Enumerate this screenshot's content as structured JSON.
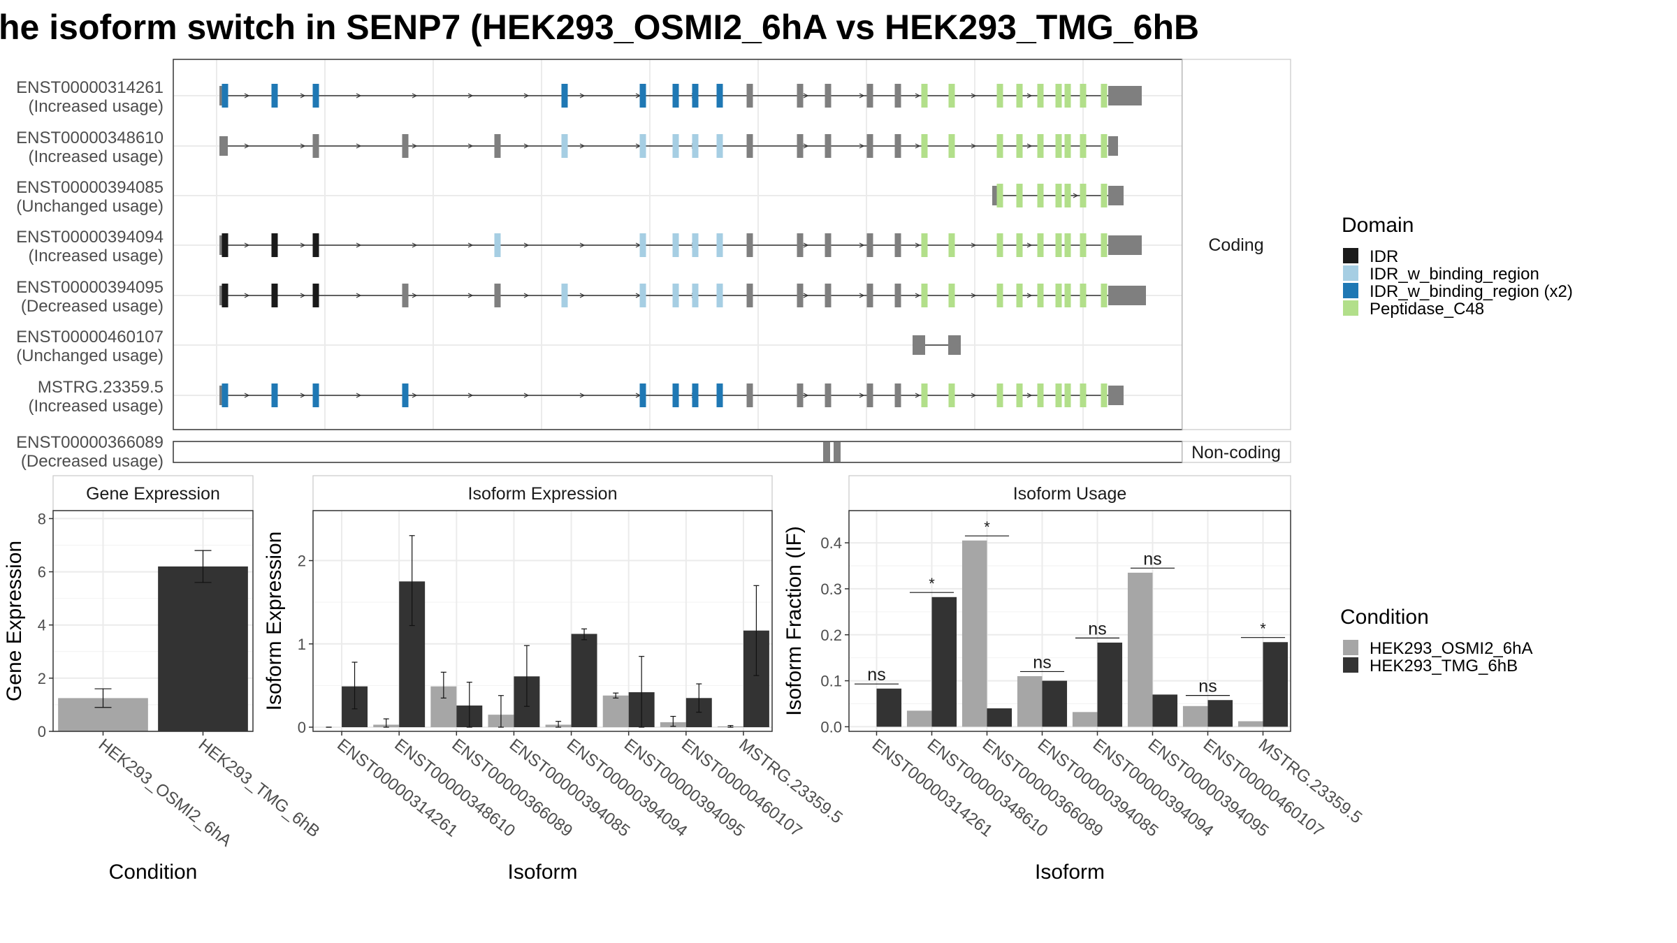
{
  "title": "he isoform switch in SENP7 (HEK293_OSMI2_6hA vs HEK293_TMG_6hB",
  "colors": {
    "IDR": "#1a1a1a",
    "IDR_w_binding_region": "#a6cee3",
    "IDR_w_binding_region (x2)": "#1f78b4",
    "Peptidase_C48": "#b2df8a",
    "exon": "#7f7f7f",
    "cond1": "#a6a6a6",
    "cond2": "#333333",
    "grid": "#ebebeb"
  },
  "structure": {
    "coding_label": "Coding",
    "noncoding_label": "Non-coding",
    "coding": [
      {
        "id": "ENST00000314261",
        "usage": "(Increased usage)"
      },
      {
        "id": "ENST00000348610",
        "usage": "(Increased usage)"
      },
      {
        "id": "ENST00000394085",
        "usage": "(Unchanged usage)"
      },
      {
        "id": "ENST00000394094",
        "usage": "(Increased usage)"
      },
      {
        "id": "ENST00000394095",
        "usage": "(Decreased usage)"
      },
      {
        "id": "ENST00000460107",
        "usage": "(Unchanged usage)"
      },
      {
        "id": "MSTRG.23359.5",
        "usage": "(Increased usage)"
      }
    ],
    "noncoding": [
      {
        "id": "ENST00000366089",
        "usage": "(Decreased usage)"
      }
    ]
  },
  "legend_domain": {
    "title": "Domain",
    "items": [
      "IDR",
      "IDR_w_binding_region",
      "IDR_w_binding_region (x2)",
      "Peptidase_C48"
    ]
  },
  "legend_condition": {
    "title": "Condition",
    "items": [
      "HEK293_OSMI2_6hA",
      "HEK293_TMG_6hB"
    ]
  },
  "chart_data": [
    {
      "type": "bar",
      "title": "Gene Expression",
      "xlabel": "Condition",
      "ylabel": "Gene Expression",
      "categories": [
        "HEK293_OSMI2_6hA",
        "HEK293_TMG_6hB"
      ],
      "values": [
        1.25,
        6.2
      ],
      "errors": [
        [
          0.9,
          1.6
        ],
        [
          5.6,
          6.8
        ]
      ],
      "ylim": [
        0,
        8.3
      ],
      "yticks": [
        0,
        2,
        4,
        6,
        8
      ]
    },
    {
      "type": "bar",
      "title": "Isoform Expression",
      "xlabel": "Isoform",
      "ylabel": "Isoform Expression",
      "categories": [
        "ENST00000314261",
        "ENST00000348610",
        "ENST00000366089",
        "ENST00000394085",
        "ENST00000394094",
        "ENST00000394095",
        "ENST00000460107",
        "MSTRG.23359.5"
      ],
      "series": [
        {
          "name": "HEK293_OSMI2_6hA",
          "values": [
            0.0,
            0.03,
            0.49,
            0.15,
            0.03,
            0.38,
            0.06,
            0.01
          ],
          "errors": [
            [
              0,
              0
            ],
            [
              0,
              0.1
            ],
            [
              0.35,
              0.66
            ],
            [
              0,
              0.38
            ],
            [
              0,
              0.07
            ],
            [
              0.35,
              0.41
            ],
            [
              0.01,
              0.13
            ],
            [
              0,
              0.02
            ]
          ]
        },
        {
          "name": "HEK293_TMG_6hB",
          "values": [
            0.49,
            1.75,
            0.26,
            0.61,
            1.12,
            0.42,
            0.35,
            1.16
          ],
          "errors": [
            [
              0.22,
              0.78
            ],
            [
              1.22,
              2.3
            ],
            [
              0,
              0.54
            ],
            [
              0.25,
              0.98
            ],
            [
              1.05,
              1.18
            ],
            [
              0,
              0.85
            ],
            [
              0.18,
              0.52
            ],
            [
              0.62,
              1.7
            ]
          ]
        }
      ],
      "ylim": [
        -0.05,
        2.6
      ],
      "yticks": [
        0,
        1,
        2
      ]
    },
    {
      "type": "bar",
      "title": "Isoform Usage",
      "xlabel": "Isoform",
      "ylabel": "Isoform Fraction (IF)",
      "categories": [
        "ENST00000314261",
        "ENST00000348610",
        "ENST00000366089",
        "ENST00000394085",
        "ENST00000394094",
        "ENST00000394095",
        "ENST00000460107",
        "MSTRG.23359.5"
      ],
      "series": [
        {
          "name": "HEK293_OSMI2_6hA",
          "values": [
            0.0,
            0.035,
            0.405,
            0.11,
            0.032,
            0.335,
            0.045,
            0.012
          ]
        },
        {
          "name": "HEK293_TMG_6hB",
          "values": [
            0.083,
            0.282,
            0.04,
            0.1,
            0.183,
            0.07,
            0.058,
            0.184
          ]
        }
      ],
      "significance": [
        "ns",
        "*",
        "*",
        "ns",
        "ns",
        "ns",
        "ns",
        "*"
      ],
      "ylim": [
        -0.01,
        0.47
      ],
      "yticks": [
        0.0,
        0.1,
        0.2,
        0.3,
        0.4
      ]
    }
  ]
}
